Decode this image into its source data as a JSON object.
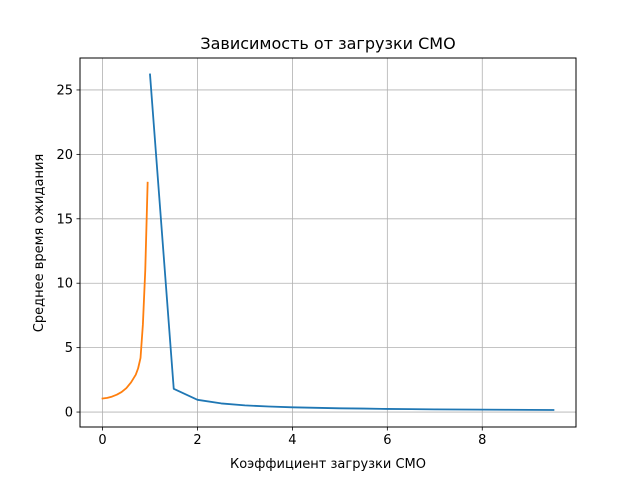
{
  "chart_data": {
    "type": "line",
    "title": "Зависимость от загрузки СМО",
    "xlabel": "Коэффициент загрузки СМО",
    "ylabel": "Среднее время ожидания",
    "xlim": [
      -0.475,
      9.975
    ],
    "ylim": [
      -1.16,
      27.48
    ],
    "xticks": [
      0,
      2,
      4,
      6,
      8
    ],
    "yticks": [
      0,
      5,
      10,
      15,
      20,
      25
    ],
    "grid": true,
    "series": [
      {
        "color": "#1f77b4",
        "x": [
          1.0,
          1.5,
          2.0,
          2.5,
          3.0,
          3.5,
          4.0,
          4.5,
          5.0,
          5.5,
          6.0,
          6.5,
          7.0,
          7.5,
          8.0,
          8.5,
          9.0,
          9.5
        ],
        "y": [
          26.2,
          1.8,
          0.95,
          0.67,
          0.52,
          0.43,
          0.37,
          0.33,
          0.29,
          0.27,
          0.24,
          0.23,
          0.21,
          0.2,
          0.19,
          0.18,
          0.17,
          0.16
        ]
      },
      {
        "color": "#ff7f0e",
        "x": [
          0.0,
          0.1,
          0.2,
          0.3,
          0.4,
          0.5,
          0.6,
          0.7,
          0.75,
          0.8,
          0.85,
          0.9,
          0.95
        ],
        "y": [
          1.05,
          1.1,
          1.2,
          1.35,
          1.55,
          1.85,
          2.3,
          2.9,
          3.4,
          4.2,
          6.8,
          11.0,
          17.8
        ]
      }
    ]
  }
}
